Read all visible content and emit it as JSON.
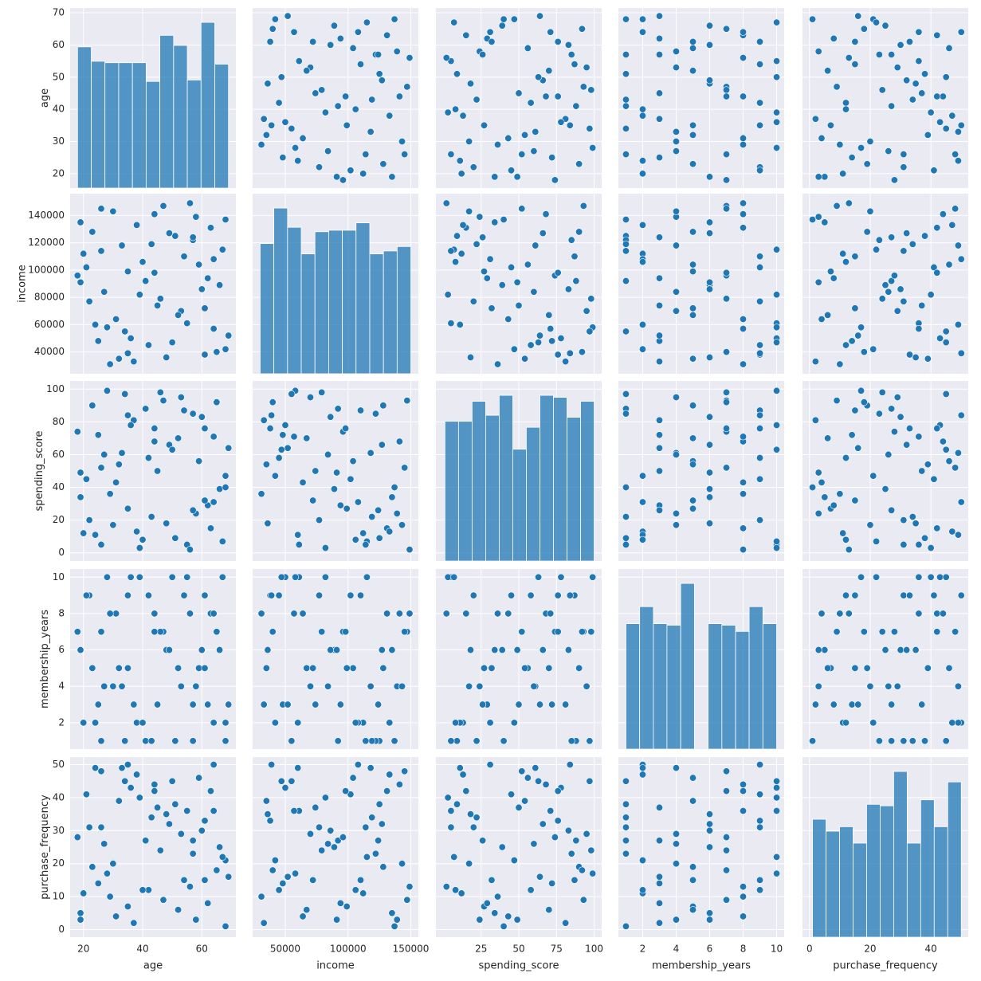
{
  "chart_data": {
    "type": "pairplot",
    "color": "#1f77b4",
    "grid": true,
    "variables": [
      {
        "name": "age",
        "lim": [
          15.5,
          71.5
        ],
        "xticks": [
          20,
          40,
          60
        ],
        "yticks": [
          20,
          30,
          40,
          50,
          60,
          70
        ],
        "bins": [
          18,
          22.64,
          27.27,
          31.91,
          36.55,
          41.18,
          45.82,
          50.45,
          55.09,
          59.73,
          64.36,
          69
        ],
        "counts": [
          98,
          88,
          87,
          87,
          87,
          74,
          106,
          99,
          75,
          115,
          86
        ]
      },
      {
        "name": "income",
        "lim": [
          24000,
          156000
        ],
        "xticks": [
          50000,
          100000,
          150000
        ],
        "yticks": [
          40000,
          60000,
          80000,
          100000,
          120000,
          140000
        ],
        "bins": [
          30000,
          40909,
          51818,
          62727,
          73636,
          84545,
          95455,
          106364,
          117273,
          128182,
          139091,
          150000
        ],
        "counts": [
          88,
          112,
          99,
          81,
          96,
          97,
          97,
          102,
          81,
          83,
          86
        ]
      },
      {
        "name": "spending_score",
        "lim": [
          -5,
          105
        ],
        "xticks": [
          25,
          50,
          75,
          100
        ],
        "yticks": [
          0,
          20,
          40,
          60,
          80,
          100
        ],
        "bins": [
          1,
          10,
          19,
          28,
          37,
          46,
          55,
          64,
          73,
          82,
          91,
          100
        ],
        "counts": [
          70,
          70,
          80,
          73,
          83,
          56,
          67,
          83,
          82,
          72,
          80
        ]
      },
      {
        "name": "membership_years",
        "lim": [
          0.55,
          10.45
        ],
        "xticks": [
          2,
          4,
          6,
          8,
          10
        ],
        "yticks": [
          2,
          4,
          6,
          8,
          10
        ],
        "bins": [
          1,
          1.82,
          2.64,
          3.45,
          4.27,
          5.09,
          5.91,
          6.73,
          7.55,
          8.36,
          9.18,
          10
        ],
        "counts": [
          81,
          92,
          81,
          80,
          107,
          0,
          81,
          80,
          76,
          92,
          81
        ]
      },
      {
        "name": "purchase_frequency",
        "lim": [
          -2.3,
          52.3
        ],
        "xticks": [
          0,
          20,
          40
        ],
        "yticks": [
          0,
          10,
          20,
          30,
          40,
          50
        ],
        "bins": [
          1,
          5.45,
          9.91,
          14.36,
          18.82,
          23.27,
          27.73,
          32.18,
          36.64,
          41.09,
          45.55,
          50
        ],
        "counts": [
          79,
          71,
          74,
          63,
          89,
          88,
          111,
          63,
          92,
          74,
          104
        ]
      }
    ],
    "rows": [
      [
        25,
        48000,
        72,
        3,
        14
      ],
      [
        63,
        131000,
        15,
        8,
        42
      ],
      [
        41,
        92000,
        88,
        1,
        27
      ],
      [
        19,
        135000,
        34,
        6,
        5
      ],
      [
        55,
        61000,
        5,
        10,
        36
      ],
      [
        33,
        118000,
        61,
        4,
        49
      ],
      [
        68,
        42000,
        47,
        2,
        21
      ],
      [
        47,
        147000,
        93,
        7,
        9
      ],
      [
        22,
        77000,
        20,
        9,
        31
      ],
      [
        59,
        104000,
        56,
        5,
        46
      ],
      [
        37,
        33000,
        81,
        3,
        2
      ],
      [
        51,
        125000,
        9,
        1,
        38
      ],
      [
        28,
        58000,
        99,
        10,
        17
      ],
      [
        66,
        89000,
        39,
        6,
        25
      ],
      [
        44,
        141000,
        68,
        8,
        44
      ],
      [
        20,
        112000,
        12,
        2,
        11
      ],
      [
        61,
        38000,
        76,
        9,
        33
      ],
      [
        35,
        99000,
        27,
        5,
        7
      ],
      [
        53,
        70000,
        95,
        4,
        29
      ],
      [
        26,
        145000,
        52,
        7,
        48
      ],
      [
        69,
        52000,
        64,
        3,
        16
      ],
      [
        39,
        82000,
        3,
        10,
        40
      ],
      [
        57,
        122000,
        85,
        1,
        23
      ],
      [
        31,
        64000,
        43,
        8,
        4
      ],
      [
        48,
        36000,
        18,
        6,
        35
      ],
      [
        23,
        128000,
        90,
        5,
        19
      ],
      [
        64,
        108000,
        31,
        2,
        50
      ],
      [
        42,
        45000,
        58,
        9,
        12
      ],
      [
        18,
        96000,
        74,
        7,
        28
      ],
      [
        58,
        139000,
        24,
        4,
        3
      ],
      [
        34,
        55000,
        97,
        1,
        45
      ],
      [
        67,
        115000,
        7,
        10,
        22
      ],
      [
        45,
        74000,
        50,
        3,
        37
      ],
      [
        29,
        31000,
        36,
        8,
        10
      ],
      [
        60,
        86000,
        83,
        6,
        30
      ],
      [
        38,
        133000,
        13,
        2,
        47
      ],
      [
        52,
        67000,
        70,
        5,
        6
      ],
      [
        21,
        102000,
        45,
        9,
        41
      ],
      [
        65,
        40000,
        92,
        7,
        18
      ],
      [
        43,
        119000,
        22,
        1,
        34
      ],
      [
        27,
        84000,
        60,
        4,
        26
      ],
      [
        56,
        149000,
        2,
        8,
        13
      ],
      [
        36,
        50000,
        78,
        10,
        43
      ],
      [
        62,
        94000,
        29,
        3,
        8
      ],
      [
        49,
        127000,
        66,
        6,
        32
      ],
      [
        24,
        60000,
        11,
        2,
        49
      ],
      [
        54,
        110000,
        87,
        9,
        15
      ],
      [
        32,
        35000,
        54,
        5,
        39
      ],
      [
        68,
        137000,
        40,
        1,
        1
      ],
      [
        46,
        79000,
        98,
        7,
        24
      ],
      [
        30,
        143000,
        17,
        4,
        20
      ],
      [
        50,
        47000,
        63,
        10,
        45
      ],
      [
        40,
        106000,
        8,
        2,
        12
      ],
      [
        64,
        57000,
        71,
        8,
        36
      ],
      [
        19,
        91000,
        49,
        6,
        3
      ],
      [
        57,
        124000,
        26,
        3,
        27
      ],
      [
        35,
        39000,
        84,
        9,
        50
      ],
      [
        61,
        72000,
        32,
        5,
        15
      ],
      [
        26,
        114000,
        5,
        1,
        31
      ],
      [
        44,
        98000,
        76,
        7,
        42
      ]
    ]
  }
}
